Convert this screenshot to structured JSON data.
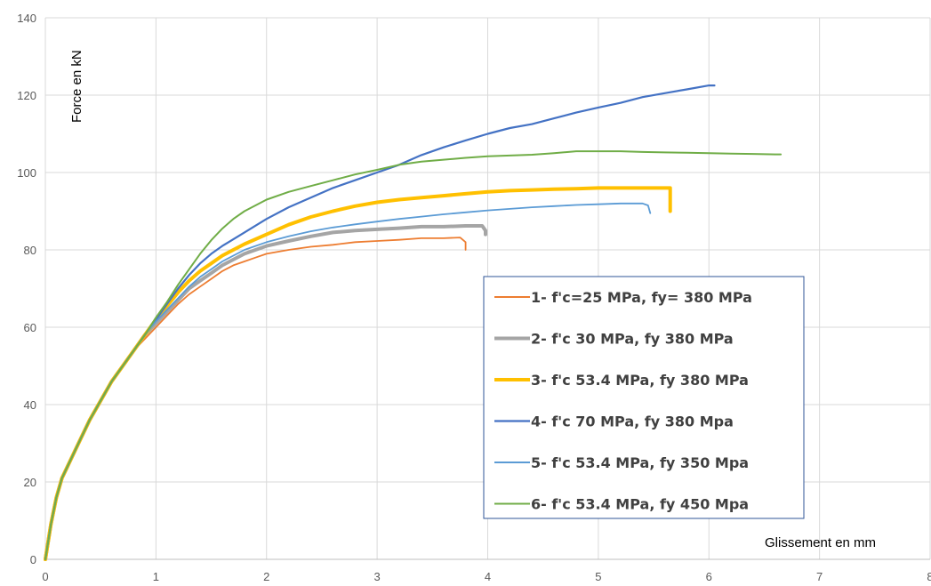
{
  "chart_data": {
    "type": "line",
    "title": "",
    "xlabel": "Glissement en mm",
    "ylabel": "Force  en kN",
    "xlim": [
      0,
      8
    ],
    "ylim": [
      0,
      140
    ],
    "x_ticks": [
      0,
      1,
      2,
      3,
      4,
      5,
      6,
      7,
      8
    ],
    "y_ticks": [
      0,
      20,
      40,
      60,
      80,
      100,
      120,
      140
    ],
    "grid": true,
    "legend_position": "bottom-right",
    "series": [
      {
        "name": "1- f'c=25 MPa, fy= 380 MPa",
        "color": "#ED7D31",
        "width": 1.8,
        "x": [
          0,
          0.05,
          0.1,
          0.15,
          0.2,
          0.3,
          0.4,
          0.5,
          0.6,
          0.7,
          0.8,
          0.9,
          1.0,
          1.1,
          1.2,
          1.3,
          1.4,
          1.5,
          1.6,
          1.7,
          1.8,
          1.9,
          2.0,
          2.2,
          2.4,
          2.6,
          2.8,
          3.0,
          3.2,
          3.4,
          3.6,
          3.75,
          3.8,
          3.8
        ],
        "y": [
          0,
          9,
          16,
          21,
          24,
          30,
          36,
          41,
          46,
          50,
          54,
          57,
          60,
          63,
          66,
          68.5,
          70.5,
          72.5,
          74.5,
          76,
          77,
          78,
          79,
          80,
          80.8,
          81.3,
          82,
          82.3,
          82.6,
          83,
          83,
          83.2,
          82,
          80
        ]
      },
      {
        "name": "2- f'c 30 MPa, fy 380 MPa",
        "color": "#A5A5A5",
        "width": 4,
        "x": [
          0,
          0.05,
          0.1,
          0.15,
          0.2,
          0.3,
          0.4,
          0.5,
          0.6,
          0.7,
          0.8,
          0.9,
          1.0,
          1.1,
          1.2,
          1.3,
          1.4,
          1.5,
          1.6,
          1.7,
          1.8,
          1.9,
          2.0,
          2.2,
          2.4,
          2.6,
          2.8,
          3.0,
          3.2,
          3.4,
          3.6,
          3.8,
          3.95,
          3.98,
          3.98
        ],
        "y": [
          0,
          9,
          16,
          21,
          24,
          30,
          36,
          41,
          46,
          50,
          54,
          58,
          61,
          64,
          67,
          70,
          72,
          74,
          76,
          77.5,
          79,
          80,
          81,
          82.3,
          83.5,
          84.5,
          85,
          85.3,
          85.6,
          86,
          86,
          86.2,
          86.2,
          85,
          84
        ]
      },
      {
        "name": "3- f'c 53.4 MPa, fy 380 MPa",
        "color": "#FFC000",
        "width": 4,
        "x": [
          0,
          0.05,
          0.1,
          0.15,
          0.2,
          0.3,
          0.4,
          0.5,
          0.6,
          0.7,
          0.8,
          0.9,
          1.0,
          1.1,
          1.2,
          1.3,
          1.4,
          1.5,
          1.6,
          1.8,
          2.0,
          2.2,
          2.4,
          2.6,
          2.8,
          3.0,
          3.2,
          3.4,
          3.6,
          3.8,
          4.0,
          4.2,
          4.4,
          4.6,
          4.8,
          5.0,
          5.2,
          5.4,
          5.6,
          5.65,
          5.65
        ],
        "y": [
          0,
          9,
          16,
          21,
          24,
          30,
          36,
          41,
          46,
          50,
          54,
          58,
          62,
          65.5,
          69,
          72,
          74.5,
          76.5,
          78.5,
          81.5,
          84,
          86.5,
          88.5,
          90,
          91.3,
          92.3,
          93,
          93.5,
          94,
          94.5,
          95,
          95.3,
          95.5,
          95.7,
          95.8,
          96,
          96,
          96,
          96,
          96,
          90
        ]
      },
      {
        "name": "4- f'c 70 MPa, fy 380 Mpa",
        "color": "#4472C4",
        "width": 2.2,
        "x": [
          0,
          0.05,
          0.1,
          0.15,
          0.2,
          0.3,
          0.4,
          0.5,
          0.6,
          0.7,
          0.8,
          0.9,
          1.0,
          1.1,
          1.2,
          1.3,
          1.4,
          1.5,
          1.6,
          1.8,
          2.0,
          2.2,
          2.4,
          2.6,
          2.8,
          3.0,
          3.2,
          3.4,
          3.6,
          3.8,
          4.0,
          4.2,
          4.4,
          4.6,
          4.8,
          5.0,
          5.2,
          5.4,
          5.6,
          5.8,
          6.0,
          6.05
        ],
        "y": [
          0,
          9,
          16,
          21,
          24,
          30,
          36,
          41,
          46,
          50,
          54,
          58,
          62,
          66,
          70,
          73.5,
          76.5,
          79,
          81,
          84.5,
          88,
          91,
          93.5,
          96,
          98,
          100,
          102,
          104.5,
          106.5,
          108.3,
          110,
          111.5,
          112.5,
          114,
          115.5,
          116.8,
          118,
          119.5,
          120.5,
          121.5,
          122.5,
          122.5
        ]
      },
      {
        "name": "5- f'c 53.4 MPa, fy 350 Mpa",
        "color": "#5B9BD5",
        "width": 1.8,
        "x": [
          0,
          0.05,
          0.1,
          0.15,
          0.2,
          0.3,
          0.4,
          0.5,
          0.6,
          0.7,
          0.8,
          0.9,
          1.0,
          1.1,
          1.2,
          1.3,
          1.4,
          1.5,
          1.6,
          1.8,
          2.0,
          2.2,
          2.4,
          2.6,
          2.8,
          3.0,
          3.2,
          3.4,
          3.6,
          3.8,
          4.0,
          4.2,
          4.4,
          4.6,
          4.8,
          5.0,
          5.2,
          5.4,
          5.45,
          5.47
        ],
        "y": [
          0,
          9,
          16,
          21,
          24,
          30,
          36,
          41,
          46,
          50,
          54,
          58,
          61.5,
          64.5,
          67.5,
          70.5,
          73,
          75,
          77,
          80,
          82,
          83.5,
          84.8,
          85.8,
          86.6,
          87.3,
          88,
          88.6,
          89.2,
          89.7,
          90.2,
          90.6,
          91,
          91.3,
          91.6,
          91.8,
          92,
          92,
          91.5,
          89.5
        ]
      },
      {
        "name": "6- f'c 53.4 MPa, fy 450 Mpa",
        "color": "#70AD47",
        "width": 2,
        "x": [
          0,
          0.05,
          0.1,
          0.15,
          0.2,
          0.3,
          0.4,
          0.5,
          0.6,
          0.7,
          0.8,
          0.9,
          1.0,
          1.1,
          1.2,
          1.3,
          1.4,
          1.5,
          1.6,
          1.7,
          1.8,
          2.0,
          2.2,
          2.4,
          2.6,
          2.8,
          3.0,
          3.2,
          3.4,
          3.6,
          3.8,
          4.0,
          4.2,
          4.4,
          4.6,
          4.8,
          5.0,
          5.2,
          5.4,
          5.6,
          5.8,
          6.0,
          6.2,
          6.4,
          6.6,
          6.65
        ],
        "y": [
          0,
          9,
          16,
          21,
          24,
          30,
          36,
          41,
          46,
          50,
          54,
          58,
          62.5,
          66.5,
          71,
          75,
          79,
          82.5,
          85.5,
          88,
          90,
          93,
          95,
          96.5,
          98,
          99.5,
          100.7,
          102,
          102.8,
          103.3,
          103.8,
          104.2,
          104.4,
          104.6,
          105,
          105.5,
          105.5,
          105.5,
          105.3,
          105.2,
          105.1,
          105,
          104.9,
          104.8,
          104.7,
          104.7
        ]
      }
    ]
  }
}
